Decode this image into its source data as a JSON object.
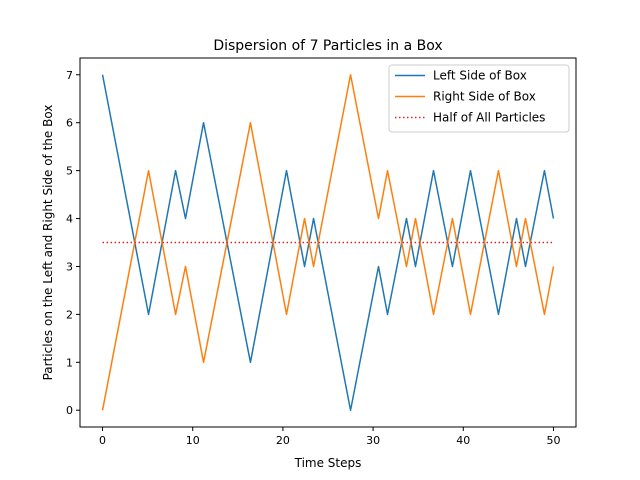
{
  "chart_data": {
    "type": "line",
    "title": "Dispersion of 7 Particles in a Box",
    "xlabel": "Time Steps",
    "ylabel": "Particles on the Left and Right Side of the Box",
    "xlim": [
      -2.5,
      52.5
    ],
    "ylim": [
      -0.35,
      7.35
    ],
    "xticks": [
      0,
      10,
      20,
      30,
      40,
      50
    ],
    "yticks": [
      0,
      1,
      2,
      3,
      4,
      5,
      6,
      7
    ],
    "grid": false,
    "legend_position": "upper right",
    "x": [
      0,
      5.1,
      8.1,
      9.2,
      11.2,
      16.4,
      20.4,
      22.4,
      23.4,
      27.5,
      30.6,
      31.6,
      33.7,
      34.7,
      36.7,
      38.8,
      40.8,
      43.9,
      45.9,
      46.9,
      49.0,
      50.0
    ],
    "series": [
      {
        "name": "Left Side of Box",
        "color": "#1f77b4",
        "style": "solid",
        "values": [
          7,
          2,
          5,
          4,
          6,
          1,
          5,
          3,
          4,
          0,
          3,
          2,
          4,
          3,
          5,
          3,
          5,
          2,
          4,
          3,
          5,
          4
        ]
      },
      {
        "name": "Right Side of Box",
        "color": "#ff7f0e",
        "style": "solid",
        "values": [
          0,
          5,
          2,
          3,
          1,
          6,
          2,
          4,
          3,
          7,
          4,
          5,
          3,
          4,
          2,
          4,
          2,
          5,
          3,
          4,
          2,
          3
        ]
      },
      {
        "name": "Half of All Particles",
        "color": "#d62728",
        "style": "dotted",
        "x": [
          0,
          50
        ],
        "values": [
          3.5,
          3.5
        ]
      }
    ]
  }
}
